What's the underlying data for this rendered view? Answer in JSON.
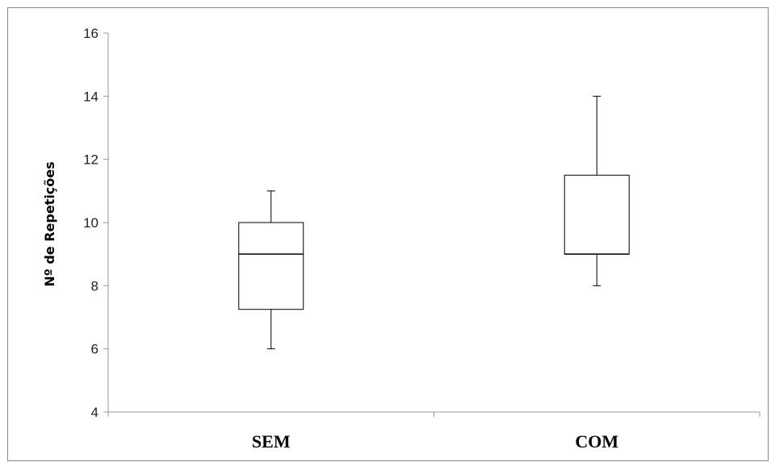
{
  "chart_data": {
    "type": "box",
    "title": "",
    "xlabel": "",
    "ylabel": "Nº de Repetições",
    "ylim": [
      4,
      16
    ],
    "yticks": [
      "4",
      "6",
      "8",
      "10",
      "12",
      "14",
      "16"
    ],
    "categories": [
      "SEM",
      "COM"
    ],
    "boxes": [
      {
        "category": "SEM",
        "min": 6,
        "q1": 7.25,
        "median": 9,
        "q3": 10,
        "max": 11
      },
      {
        "category": "COM",
        "min": 8,
        "q1": 9,
        "median": 9,
        "q3": 11.5,
        "max": 14
      }
    ],
    "grid": false,
    "legend": "none"
  },
  "colors": {
    "axis": "#999999",
    "box_stroke": "#000000",
    "frame": "#888888"
  }
}
